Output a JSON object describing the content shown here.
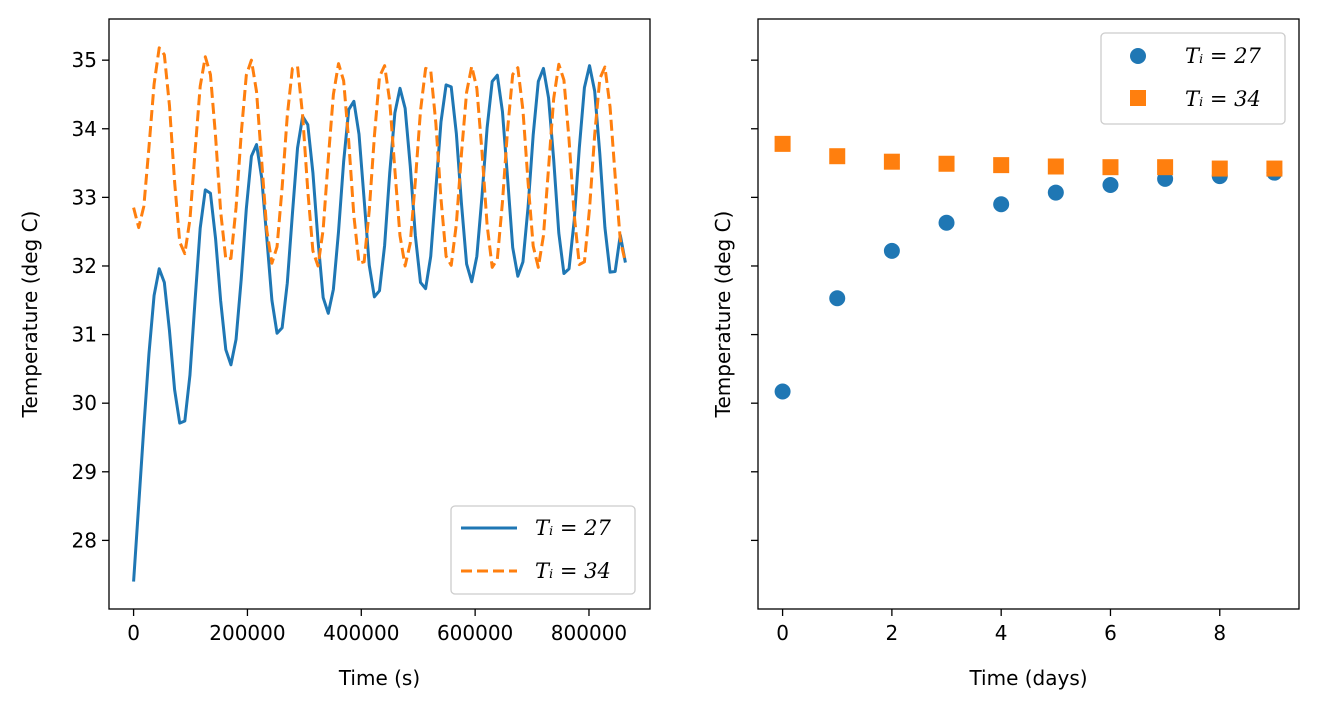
{
  "chart_data": [
    {
      "type": "line",
      "xlabel": "Time (s)",
      "ylabel": "Temperature (deg C)",
      "xlim": [
        -43200,
        907200
      ],
      "ylim": [
        27.0,
        35.6
      ],
      "xticks": [
        0,
        200000,
        400000,
        600000,
        800000
      ],
      "xtick_labels": [
        "0",
        "200000",
        "400000",
        "600000",
        "800000"
      ],
      "yticks": [
        28,
        29,
        30,
        31,
        32,
        33,
        34,
        35
      ],
      "ytick_labels": [
        "28",
        "29",
        "30",
        "31",
        "32",
        "33",
        "34",
        "35"
      ],
      "grid": false,
      "legend_position": "lower-right",
      "series": [
        {
          "name": "T_i = 27",
          "legend_label": "Tᵢ = 27",
          "color": "#1f77b4",
          "style": "solid",
          "x": [
            0,
            9000,
            18000,
            27000,
            36000,
            45000,
            54000,
            63000,
            72000,
            81000,
            90000,
            99000,
            108000,
            117000,
            126000,
            135000,
            144000,
            153000,
            162000,
            171000,
            180000,
            189000,
            198000,
            207000,
            216000,
            225000,
            234000,
            243000,
            252000,
            261000,
            270000,
            279000,
            288000,
            297000,
            306000,
            315000,
            324000,
            333000,
            342000,
            351000,
            360000,
            369000,
            378000,
            387000,
            396000,
            405000,
            414000,
            423000,
            432000,
            441000,
            450000,
            459000,
            468000,
            477000,
            486000,
            495000,
            504000,
            513000,
            522000,
            531000,
            540000,
            549000,
            558000,
            567000,
            576000,
            585000,
            594000,
            603000,
            612000,
            621000,
            630000,
            639000,
            648000,
            657000,
            666000,
            675000,
            684000,
            693000,
            702000,
            711000,
            720000,
            729000,
            738000,
            747000,
            756000,
            765000,
            774000,
            783000,
            792000,
            801000,
            810000,
            819000,
            828000,
            837000,
            846000,
            855000,
            864000
          ],
          "y": [
            27.4,
            28.52,
            29.65,
            30.72,
            31.57,
            31.96,
            31.76,
            31.06,
            30.2,
            29.71,
            29.74,
            30.41,
            31.5,
            32.55,
            33.11,
            33.06,
            32.4,
            31.49,
            30.78,
            30.56,
            30.93,
            31.8,
            32.83,
            33.6,
            33.77,
            33.29,
            32.41,
            31.5,
            31.02,
            31.1,
            31.75,
            32.76,
            33.72,
            34.18,
            34.06,
            33.36,
            32.37,
            31.54,
            31.31,
            31.66,
            32.5,
            33.52,
            34.28,
            34.4,
            33.92,
            32.97,
            32.01,
            31.55,
            31.64,
            32.3,
            33.36,
            34.23,
            34.59,
            34.3,
            33.46,
            32.44,
            31.76,
            31.67,
            32.14,
            33.12,
            34.1,
            34.64,
            34.61,
            33.93,
            32.91,
            32.03,
            31.77,
            32.14,
            33.01,
            34.01,
            34.69,
            34.78,
            34.25,
            33.28,
            32.27,
            31.85,
            32.06,
            32.86,
            33.91,
            34.69,
            34.88,
            34.45,
            33.55,
            32.48,
            31.89,
            31.96,
            32.66,
            33.72,
            34.6,
            34.92,
            34.55,
            33.64,
            32.56,
            31.91,
            31.92,
            32.45,
            32.05
          ]
        },
        {
          "name": "T_i = 34",
          "legend_label": "Tᵢ = 34",
          "color": "#ff7f0e",
          "style": "dashed",
          "x": [
            0,
            9000,
            18000,
            27000,
            36000,
            45000,
            54000,
            63000,
            72000,
            81000,
            90000,
            99000,
            108000,
            117000,
            126000,
            135000,
            144000,
            153000,
            162000,
            171000,
            180000,
            189000,
            198000,
            207000,
            216000,
            225000,
            234000,
            243000,
            252000,
            261000,
            270000,
            279000,
            288000,
            297000,
            306000,
            315000,
            324000,
            333000,
            342000,
            351000,
            360000,
            369000,
            378000,
            387000,
            396000,
            405000,
            414000,
            423000,
            432000,
            441000,
            450000,
            459000,
            468000,
            477000,
            486000,
            495000,
            504000,
            513000,
            522000,
            531000,
            540000,
            549000,
            558000,
            567000,
            576000,
            585000,
            594000,
            603000,
            612000,
            621000,
            630000,
            639000,
            648000,
            657000,
            666000,
            675000,
            684000,
            693000,
            702000,
            711000,
            720000,
            729000,
            738000,
            747000,
            756000,
            765000,
            774000,
            783000,
            792000,
            801000,
            810000,
            819000,
            828000,
            837000,
            846000,
            855000,
            864000
          ],
          "y": [
            32.85,
            32.56,
            32.87,
            33.73,
            34.65,
            35.18,
            35.08,
            34.34,
            33.23,
            32.35,
            32.18,
            32.68,
            33.67,
            34.62,
            35.05,
            34.79,
            33.89,
            32.79,
            32.1,
            32.11,
            32.85,
            33.92,
            34.78,
            35.0,
            34.54,
            33.53,
            32.52,
            32.04,
            32.28,
            33.15,
            34.19,
            34.88,
            34.91,
            34.19,
            33.1,
            32.22,
            32.0,
            32.53,
            33.56,
            34.5,
            34.95,
            34.7,
            33.81,
            32.73,
            32.04,
            32.06,
            32.81,
            33.89,
            34.76,
            34.92,
            34.4,
            33.4,
            32.44,
            32.0,
            32.33,
            33.24,
            34.26,
            34.88,
            34.85,
            34.08,
            32.98,
            32.14,
            32.01,
            32.61,
            33.64,
            34.53,
            34.91,
            34.59,
            33.67,
            32.6,
            31.98,
            32.1,
            32.93,
            33.99,
            34.79,
            34.89,
            34.27,
            33.22,
            32.29,
            31.98,
            32.44,
            33.43,
            34.44,
            34.94,
            34.71,
            33.84,
            32.75,
            32.02,
            32.06,
            32.84,
            33.91,
            34.73,
            34.9,
            34.32,
            33.31,
            32.38,
            32.05
          ]
        }
      ]
    },
    {
      "type": "scatter",
      "xlabel": "Time (days)",
      "ylabel": "Temperature (deg C)",
      "xlim": [
        -0.45,
        9.45
      ],
      "ylim": [
        27.0,
        35.6
      ],
      "xticks": [
        0,
        2,
        4,
        6,
        8
      ],
      "xtick_labels": [
        "0",
        "2",
        "4",
        "6",
        "8"
      ],
      "yticks": [
        28,
        29,
        30,
        31,
        32,
        33,
        34,
        35
      ],
      "ytick_labels_shown": false,
      "grid": false,
      "legend_position": "upper-right",
      "series": [
        {
          "name": "T_i = 27",
          "legend_label": "Tᵢ = 27",
          "color": "#1f77b4",
          "marker": "circle",
          "x": [
            0,
            1,
            2,
            3,
            4,
            5,
            6,
            7,
            8,
            9
          ],
          "y": [
            30.17,
            31.53,
            32.22,
            32.63,
            32.9,
            33.07,
            33.18,
            33.27,
            33.31,
            33.36
          ]
        },
        {
          "name": "T_i = 34",
          "legend_label": "Tᵢ = 34",
          "color": "#ff7f0e",
          "marker": "square",
          "x": [
            0,
            1,
            2,
            3,
            4,
            5,
            6,
            7,
            8,
            9
          ],
          "y": [
            33.78,
            33.6,
            33.52,
            33.49,
            33.47,
            33.45,
            33.44,
            33.44,
            33.42,
            33.42
          ]
        }
      ]
    }
  ]
}
